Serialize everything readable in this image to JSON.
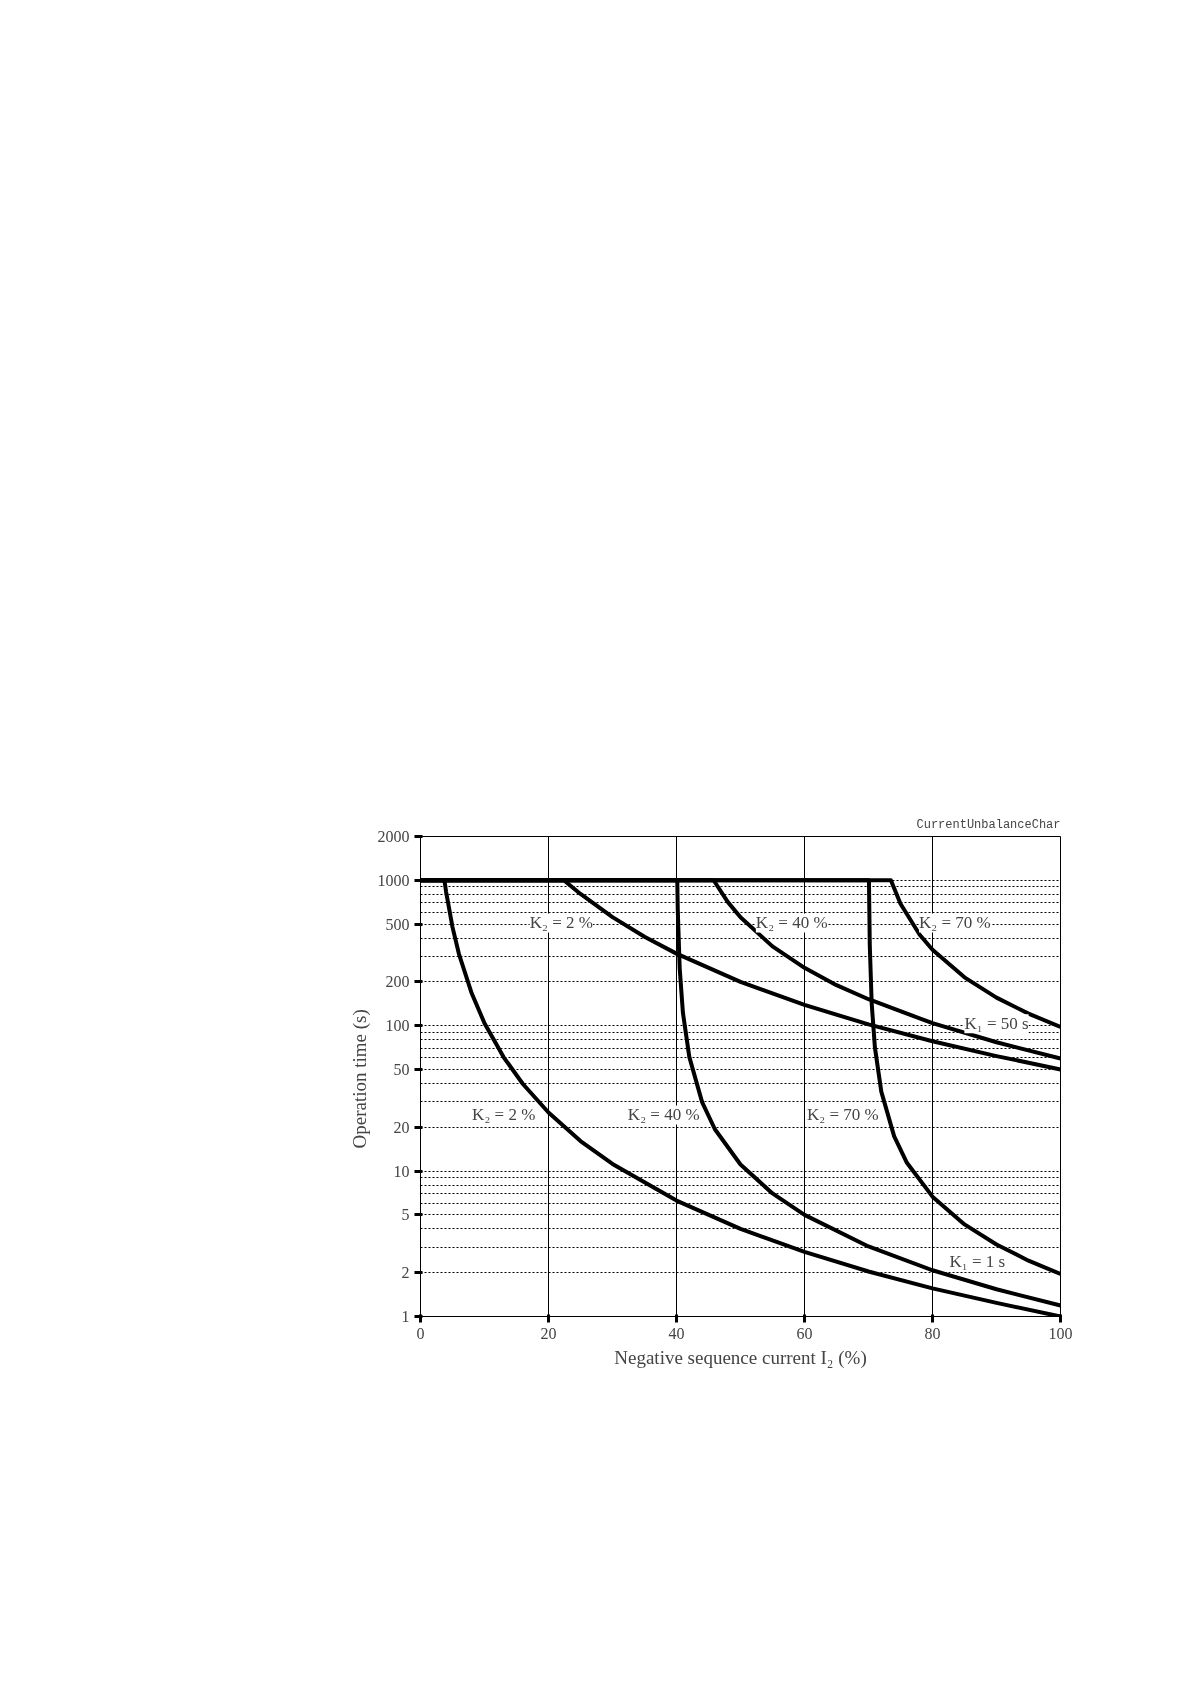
{
  "chart_data": {
    "type": "line",
    "xlabel": "Negative sequence current I₂ (%)",
    "ylabel": "Operation time  (s)",
    "log": "y",
    "grid": true,
    "marker": "none",
    "line_style": "solid",
    "xlim": [
      0,
      100
    ],
    "xticks": [
      0,
      20,
      40,
      60,
      80,
      100
    ],
    "ylim": [
      1,
      2000
    ],
    "yticks": [
      1,
      2,
      5,
      10,
      20,
      50,
      100,
      200,
      500,
      1000,
      2000
    ],
    "series": [
      {
        "color": "#000000",
        "x": [
          0,
          3.74,
          4,
          5,
          6,
          8,
          10,
          13,
          16,
          20,
          25,
          30,
          40,
          50,
          60,
          70,
          80,
          90,
          100
        ],
        "values": [
          1000,
          1000,
          833,
          476,
          312,
          167,
          104,
          60.6,
          39.7,
          25.3,
          16.1,
          11.2,
          6.27,
          4.01,
          2.78,
          2.04,
          1.56,
          1.24,
          1.0
        ]
      },
      {
        "color": "#000000",
        "x": [
          0,
          40.12,
          40.2,
          40.5,
          41,
          42,
          44,
          46,
          50,
          55,
          60,
          70,
          80,
          90,
          100
        ],
        "values": [
          1000,
          1000,
          623,
          248,
          123,
          61,
          29.8,
          19.4,
          11.1,
          7.02,
          5.0,
          3.03,
          2.08,
          1.54,
          1.19
        ]
      },
      {
        "color": "#000000",
        "x": [
          0,
          70.07,
          70.2,
          70.5,
          71,
          72,
          74,
          76,
          80,
          85,
          90,
          95,
          100
        ],
        "values": [
          1000,
          1000,
          357,
          142,
          70.9,
          35.2,
          17.4,
          11.4,
          6.67,
          4.3,
          3.13,
          2.42,
          1.96
        ]
      },
      {
        "color": "#000000",
        "x": [
          0,
          22.4,
          25,
          30,
          35,
          40,
          50,
          60,
          70,
          80,
          90,
          100
        ],
        "values": [
          1000,
          1000,
          805,
          558,
          409,
          313,
          200,
          139,
          102,
          78.2,
          61.8,
          50.0
        ]
      },
      {
        "color": "#000000",
        "x": [
          0,
          45.8,
          48,
          50,
          55,
          60,
          65,
          70,
          80,
          90,
          100
        ],
        "values": [
          1000,
          1000,
          710,
          556,
          351,
          250,
          190,
          152,
          104,
          76.9,
          59.5
        ]
      },
      {
        "color": "#000000",
        "x": [
          0,
          73.5,
          75,
          78,
          80,
          85,
          90,
          95,
          100
        ],
        "values": [
          1000,
          1000,
          690,
          422,
          333,
          215,
          156,
          121,
          98
        ]
      }
    ],
    "annotations": [
      "CurrentUnbalanceChar",
      "K₂ = 2 %",
      "K₂ = 40 %",
      "K₂ = 70 %",
      "K₂ = 2 %",
      "K₂ = 40 %",
      "K₂ = 70 %",
      "K₁ = 50 s",
      "K₁ = 1 s"
    ]
  }
}
